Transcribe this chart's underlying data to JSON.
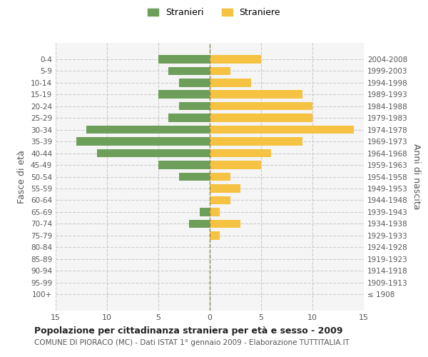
{
  "age_groups": [
    "100+",
    "95-99",
    "90-94",
    "85-89",
    "80-84",
    "75-79",
    "70-74",
    "65-69",
    "60-64",
    "55-59",
    "50-54",
    "45-49",
    "40-44",
    "35-39",
    "30-34",
    "25-29",
    "20-24",
    "15-19",
    "10-14",
    "5-9",
    "0-4"
  ],
  "birth_years": [
    "≤ 1908",
    "1909-1913",
    "1914-1918",
    "1919-1923",
    "1924-1928",
    "1929-1933",
    "1934-1938",
    "1939-1943",
    "1944-1948",
    "1949-1953",
    "1954-1958",
    "1959-1963",
    "1964-1968",
    "1969-1973",
    "1974-1978",
    "1979-1983",
    "1984-1988",
    "1989-1993",
    "1994-1998",
    "1999-2003",
    "2004-2008"
  ],
  "males": [
    0,
    0,
    0,
    0,
    0,
    0,
    2,
    1,
    0,
    0,
    3,
    5,
    11,
    13,
    12,
    4,
    3,
    5,
    3,
    4,
    5
  ],
  "females": [
    0,
    0,
    0,
    0,
    0,
    1,
    3,
    1,
    2,
    3,
    2,
    5,
    6,
    9,
    14,
    10,
    10,
    9,
    4,
    2,
    5
  ],
  "male_color": "#6d9e5a",
  "female_color": "#f5c242",
  "title": "Popolazione per cittadinanza straniera per età e sesso - 2009",
  "subtitle": "COMUNE DI PIORACO (MC) - Dati ISTAT 1° gennaio 2009 - Elaborazione TUTTITALIA.IT",
  "ylabel_left": "Fasce di età",
  "ylabel_right": "Anni di nascita",
  "legend_males": "Stranieri",
  "legend_females": "Straniere",
  "xlim": 15,
  "background_color": "#ffffff",
  "plot_bg_color": "#f5f5f5"
}
